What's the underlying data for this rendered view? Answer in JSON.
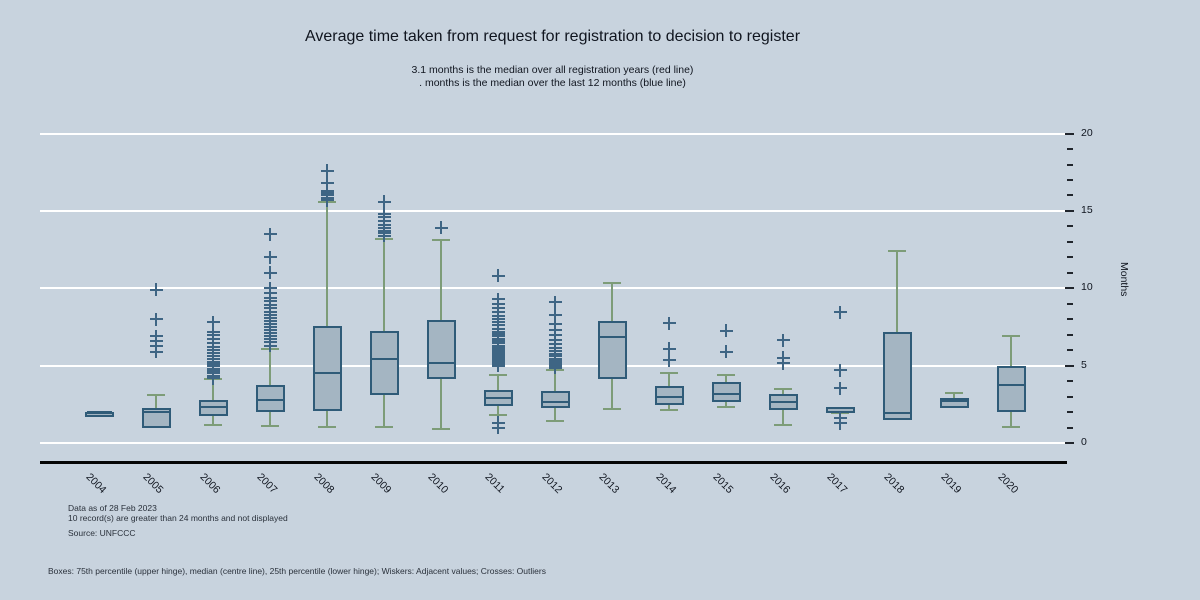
{
  "chart": {
    "title": "Average time taken from request for registration to decision to register",
    "subtitle_line1": "3.1 months is the median over all registration years (red line)",
    "subtitle_line2": ". months is the median over the last 12 months (blue line)",
    "y_axis_title": "Months",
    "footnote_line1": "Data as of 28 Feb 2023",
    "footnote_line2": "10 record(s) are greater than 24 months and not displayed",
    "source": "Source: UNFCCC",
    "legend_note": "Boxes: 75th percentile (upper hinge), median (centre line), 25th percentile (lower hinge); Wiskers: Adjacent values; Crosses: Outliers"
  },
  "colors": {
    "background": "#c8d3de",
    "gridline": "#ffffff",
    "box_fill": "#a4b5c2",
    "box_border": "#2f5b78",
    "whisker": "#7d9c78",
    "outlier_cross": "#3e6584",
    "x_axis": "#050505"
  },
  "chart_data": {
    "type": "boxplot",
    "title": "Average time taken from request for registration to decision to register",
    "xlabel": "",
    "ylabel": "Months",
    "ylim": [
      0,
      20
    ],
    "y_ticks_labeled": [
      0,
      5,
      10,
      15,
      20
    ],
    "y_minor_tick_step": 1,
    "grid": "horizontal-white",
    "categories": [
      "2004",
      "2005",
      "2006",
      "2007",
      "2008",
      "2009",
      "2010",
      "2011",
      "2012",
      "2013",
      "2014",
      "2015",
      "2016",
      "2017",
      "2018",
      "2019",
      "2020"
    ],
    "series": [
      {
        "year": "2004",
        "whisker_low": 2.0,
        "q1": 2.0,
        "median": 2.0,
        "q3": 2.0,
        "whisker_high": 2.0,
        "outliers": []
      },
      {
        "year": "2005",
        "whisker_low": 1.1,
        "q1": 1.23,
        "median": 2.0,
        "q3": 2.26,
        "whisker_high": 3.1,
        "outliers": [
          5.9,
          6.25,
          6.6,
          6.9,
          8.0,
          9.9
        ]
      },
      {
        "year": "2006",
        "whisker_low": 1.16,
        "q1": 2.02,
        "median": 2.35,
        "q3": 2.78,
        "whisker_high": 4.12,
        "outliers": [
          4.2,
          4.35,
          4.5,
          4.65,
          4.8,
          4.95,
          5.1,
          5.25,
          5.4,
          5.6,
          5.8,
          6.0,
          6.2,
          6.45,
          6.7,
          6.95,
          7.2,
          7.8
        ]
      },
      {
        "year": "2007",
        "whisker_low": 1.13,
        "q1": 2.26,
        "median": 2.78,
        "q3": 3.75,
        "whisker_high": 6.08,
        "outliers": [
          6.3,
          6.5,
          6.7,
          6.9,
          7.1,
          7.3,
          7.5,
          7.7,
          7.9,
          8.1,
          8.3,
          8.5,
          8.7,
          8.9,
          9.15,
          9.4,
          9.7,
          10.0,
          11.0,
          12.0,
          13.5
        ]
      },
      {
        "year": "2008",
        "whisker_low": 1.05,
        "q1": 2.35,
        "median": 4.55,
        "q3": 7.58,
        "whisker_high": 15.56,
        "outliers": [
          15.7,
          15.85,
          16.0,
          16.15,
          16.3,
          16.8,
          17.6
        ]
      },
      {
        "year": "2009",
        "whisker_low": 1.05,
        "q1": 3.36,
        "median": 5.43,
        "q3": 7.26,
        "whisker_high": 13.17,
        "outliers": [
          13.4,
          13.55,
          13.7,
          13.9,
          14.1,
          14.35,
          14.6,
          14.8,
          15.6
        ]
      },
      {
        "year": "2010",
        "whisker_low": 0.89,
        "q1": 4.4,
        "median": 5.15,
        "q3": 7.95,
        "whisker_high": 13.12,
        "outliers": [
          13.9
        ]
      },
      {
        "year": "2011",
        "whisker_low": 1.81,
        "q1": 2.67,
        "median": 2.89,
        "q3": 3.43,
        "whisker_high": 4.4,
        "outliers": [
          5.0,
          5.1,
          5.2,
          5.3,
          5.4,
          5.5,
          5.6,
          5.7,
          5.8,
          5.9,
          6.0,
          6.1,
          6.2,
          6.3,
          6.45,
          6.6,
          6.75,
          6.9,
          7.05,
          7.2,
          7.4,
          7.6,
          7.8,
          8.0,
          8.2,
          8.45,
          8.7,
          9.0,
          9.3,
          10.8,
          1.3,
          0.97
        ]
      },
      {
        "year": "2012",
        "whisker_low": 1.44,
        "q1": 2.52,
        "median": 2.67,
        "q3": 3.38,
        "whisker_high": 4.72,
        "outliers": [
          4.85,
          4.95,
          5.05,
          5.15,
          5.3,
          5.45,
          5.6,
          5.75,
          5.95,
          6.15,
          6.4,
          6.65,
          6.95,
          7.3,
          7.7,
          8.3,
          9.1
        ]
      },
      {
        "year": "2013",
        "whisker_low": 2.2,
        "q1": 4.4,
        "median": 6.83,
        "q3": 7.91,
        "whisker_high": 10.32,
        "outliers": []
      },
      {
        "year": "2014",
        "whisker_low": 2.13,
        "q1": 2.73,
        "median": 2.95,
        "q3": 3.68,
        "whisker_high": 4.55,
        "outliers": [
          5.35,
          6.1,
          7.75
        ]
      },
      {
        "year": "2015",
        "whisker_low": 2.31,
        "q1": 2.89,
        "median": 3.15,
        "q3": 3.96,
        "whisker_high": 4.4,
        "outliers": [
          5.9,
          7.25
        ]
      },
      {
        "year": "2016",
        "whisker_low": 1.16,
        "q1": 2.39,
        "median": 2.67,
        "q3": 3.17,
        "whisker_high": 3.49,
        "outliers": [
          5.15,
          5.5,
          6.65
        ]
      },
      {
        "year": "2017",
        "whisker_low": 1.92,
        "q1": 2.2,
        "median": 2.25,
        "q3": 2.3,
        "whisker_high": 2.3,
        "outliers": [
          3.55,
          4.7,
          8.45,
          1.6,
          1.27
        ]
      },
      {
        "year": "2018",
        "whisker_low": 1.53,
        "q1": 1.76,
        "median": 1.92,
        "q3": 7.15,
        "whisker_high": 12.41,
        "outliers": []
      },
      {
        "year": "2019",
        "whisker_low": 2.4,
        "q1": 2.49,
        "median": 2.7,
        "q3": 2.88,
        "whisker_high": 3.25,
        "outliers": []
      },
      {
        "year": "2020",
        "whisker_low": 1.01,
        "q1": 2.28,
        "median": 3.75,
        "q3": 4.98,
        "whisker_high": 6.92,
        "outliers": []
      }
    ]
  }
}
